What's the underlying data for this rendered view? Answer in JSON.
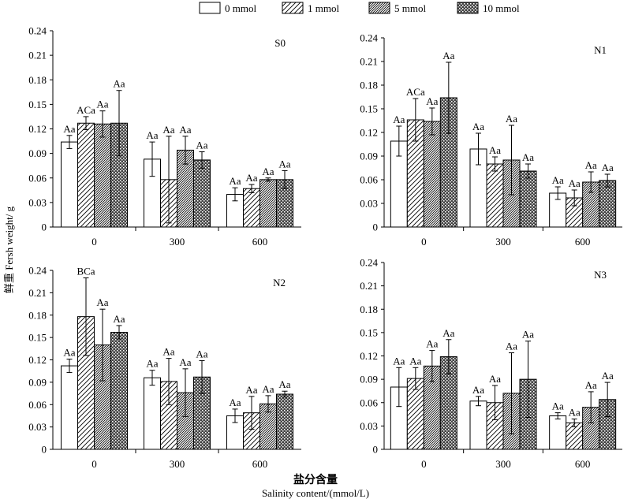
{
  "legend": [
    {
      "label": "0 mmol",
      "pattern": "empty"
    },
    {
      "label": "1 mmol",
      "pattern": "hatch"
    },
    {
      "label": "5 mmol",
      "pattern": "dense-hatch"
    },
    {
      "label": "10 mmol",
      "pattern": "crosshatch"
    }
  ],
  "ylabel": "鲜重 Fersh weight/ g",
  "xlabel_cn": "盐分含量",
  "xlabel_en": "Salinity content/(mmol/L)",
  "chart_data": [
    {
      "type": "bar",
      "title": "S0",
      "categories": [
        "0",
        "300",
        "600"
      ],
      "ylim": [
        0,
        0.24
      ],
      "yticks": [
        "0",
        "0.03",
        "0.06",
        "0.09",
        "0.12",
        "0.15",
        "0.18",
        "0.21",
        "0.24"
      ],
      "series": [
        {
          "name": "0 mmol",
          "values": [
            0.104,
            0.083,
            0.04
          ],
          "errors": [
            0.008,
            0.021,
            0.008
          ],
          "labels": [
            "Aa",
            "Aa",
            "Aa"
          ]
        },
        {
          "name": "1 mmol",
          "values": [
            0.127,
            0.058,
            0.047
          ],
          "errors": [
            0.008,
            0.053,
            0.005
          ],
          "labels": [
            "ACa",
            "Aa",
            "Aa"
          ]
        },
        {
          "name": "5 mmol",
          "values": [
            0.126,
            0.094,
            0.058
          ],
          "errors": [
            0.016,
            0.017,
            0.002
          ],
          "labels": [
            "Aa",
            "Aa",
            "Aa"
          ]
        },
        {
          "name": "10 mmol",
          "values": [
            0.127,
            0.082,
            0.058
          ],
          "errors": [
            0.04,
            0.01,
            0.011
          ],
          "labels": [
            "Aa",
            "Aa",
            "Aa"
          ]
        }
      ]
    },
    {
      "type": "bar",
      "title": "N1",
      "categories": [
        "0",
        "300",
        "600"
      ],
      "ylim": [
        0,
        0.24
      ],
      "yticks": [
        "0",
        "0.03",
        "0.06",
        "0.09",
        "0.12",
        "0.15",
        "0.18",
        "0.21",
        "0.24"
      ],
      "series": [
        {
          "name": "0 mmol",
          "values": [
            0.109,
            0.099,
            0.043
          ],
          "errors": [
            0.019,
            0.02,
            0.008
          ],
          "labels": [
            "Aa",
            "Aa",
            "Aa"
          ]
        },
        {
          "name": "1 mmol",
          "values": [
            0.136,
            0.08,
            0.037
          ],
          "errors": [
            0.027,
            0.009,
            0.01
          ],
          "labels": [
            "ACa",
            "Aa",
            "Aa"
          ]
        },
        {
          "name": "5 mmol",
          "values": [
            0.134,
            0.085,
            0.057
          ],
          "errors": [
            0.017,
            0.044,
            0.013
          ],
          "labels": [
            "Aa",
            "Aa",
            "Aa"
          ]
        },
        {
          "name": "10 mmol",
          "values": [
            0.164,
            0.071,
            0.059
          ],
          "errors": [
            0.045,
            0.009,
            0.008
          ],
          "labels": [
            "Aa",
            "Aa",
            "Aa"
          ]
        }
      ]
    },
    {
      "type": "bar",
      "title": "N2",
      "categories": [
        "0",
        "300",
        "600"
      ],
      "ylim": [
        0,
        0.24
      ],
      "yticks": [
        "0",
        "0.03",
        "0.06",
        "0.09",
        "0.12",
        "0.15",
        "0.18",
        "0.21",
        "0.24"
      ],
      "series": [
        {
          "name": "0 mmol",
          "values": [
            0.112,
            0.096,
            0.045
          ],
          "errors": [
            0.009,
            0.01,
            0.009
          ],
          "labels": [
            "Aa",
            "Aa",
            "Aa"
          ]
        },
        {
          "name": "1 mmol",
          "values": [
            0.178,
            0.091,
            0.049
          ],
          "errors": [
            0.052,
            0.031,
            0.022
          ],
          "labels": [
            "BCa",
            "Aa",
            "Aa"
          ]
        },
        {
          "name": "5 mmol",
          "values": [
            0.14,
            0.076,
            0.061
          ],
          "errors": [
            0.048,
            0.032,
            0.011
          ],
          "labels": [
            "Aa",
            "Aa",
            "Aa"
          ]
        },
        {
          "name": "10 mmol",
          "values": [
            0.157,
            0.097,
            0.074
          ],
          "errors": [
            0.009,
            0.022,
            0.004
          ],
          "labels": [
            "Aa",
            "Aa",
            "Aa"
          ]
        }
      ]
    },
    {
      "type": "bar",
      "title": "N3",
      "categories": [
        "0",
        "300",
        "600"
      ],
      "ylim": [
        0,
        0.24
      ],
      "yticks": [
        "0",
        "0.03",
        "0.06",
        "0.09",
        "0.12",
        "0.15",
        "0.18",
        "0.21",
        "0.24"
      ],
      "series": [
        {
          "name": "0 mmol",
          "values": [
            0.08,
            0.062,
            0.043
          ],
          "errors": [
            0.025,
            0.006,
            0.004
          ],
          "labels": [
            "Aa",
            "Aa",
            "Aa"
          ]
        },
        {
          "name": "1 mmol",
          "values": [
            0.091,
            0.06,
            0.034
          ],
          "errors": [
            0.014,
            0.022,
            0.005
          ],
          "labels": [
            "Aa",
            "Aa",
            "Aa"
          ]
        },
        {
          "name": "5 mmol",
          "values": [
            0.107,
            0.072,
            0.054
          ],
          "errors": [
            0.02,
            0.052,
            0.02
          ],
          "labels": [
            "Aa",
            "Aa",
            "Aa"
          ]
        },
        {
          "name": "10 mmol",
          "values": [
            0.119,
            0.09,
            0.064
          ],
          "errors": [
            0.022,
            0.049,
            0.022
          ],
          "labels": [
            "Aa",
            "Aa",
            "Aa"
          ]
        }
      ]
    }
  ]
}
